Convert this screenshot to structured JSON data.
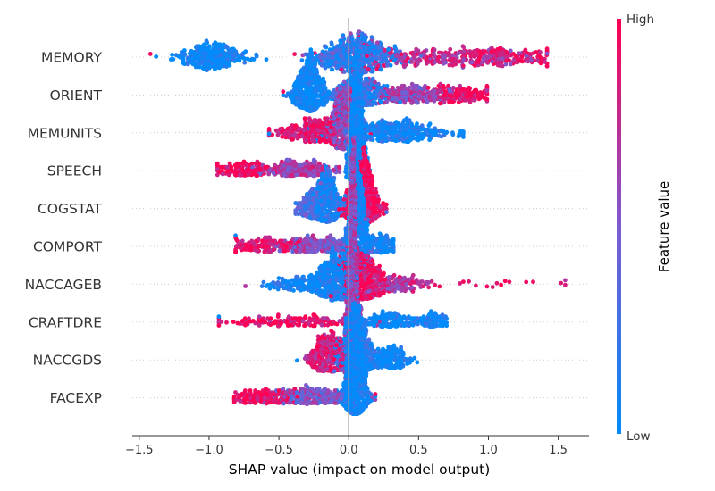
{
  "chart_data": {
    "type": "scatter",
    "subtype": "shap-beeswarm",
    "xlabel": "SHAP value (impact on model output)",
    "xlim": [
      -1.55,
      1.72
    ],
    "xticks": [
      -1.5,
      -1.0,
      -0.5,
      0.0,
      0.5,
      1.0,
      1.5
    ],
    "xtick_labels": [
      "−1.5",
      "−1.0",
      "−0.5",
      "0.0",
      "0.5",
      "1.0",
      "1.5"
    ],
    "zero_line": 0.0,
    "colorbar": {
      "label": "Feature value",
      "high_label": "High",
      "low_label": "Low",
      "low_color": "#008bfb",
      "high_color": "#ff0052"
    },
    "features": [
      {
        "name": "MEMORY",
        "min": -1.42,
        "max": 1.42,
        "outliers": [],
        "clusters": [
          [
            -0.98,
            0.12,
            0.55,
            0.0
          ],
          [
            0.05,
            0.14,
            1.0,
            0.15
          ],
          [
            0.6,
            0.38,
            0.55,
            0.75
          ],
          [
            1.1,
            0.18,
            0.22,
            0.95
          ]
        ]
      },
      {
        "name": "ORIENT",
        "min": -0.47,
        "max": 0.99,
        "outliers": [],
        "clusters": [
          [
            -0.28,
            0.06,
            0.8,
            0.0
          ],
          [
            0.08,
            0.1,
            0.5,
            0.15
          ],
          [
            0.45,
            0.2,
            0.45,
            0.6
          ],
          [
            0.8,
            0.1,
            0.18,
            0.95
          ]
        ]
      },
      {
        "name": "MEMUNITS",
        "min": -0.57,
        "max": 0.82,
        "outliers": [],
        "clusters": [
          [
            -0.02,
            0.05,
            0.7,
            0.55
          ],
          [
            -0.22,
            0.14,
            0.45,
            0.9
          ],
          [
            0.3,
            0.2,
            0.55,
            0.05
          ]
        ]
      },
      {
        "name": "SPEECH",
        "min": -0.94,
        "max": 0.15,
        "outliers": [],
        "clusters": [
          [
            0.06,
            0.03,
            0.85,
            0.0
          ],
          [
            -0.35,
            0.15,
            0.25,
            0.65
          ],
          [
            -0.75,
            0.1,
            0.15,
            0.95
          ]
        ]
      },
      {
        "name": "COGSTAT",
        "min": -0.38,
        "max": 0.27,
        "outliers": [],
        "clusters": [
          [
            0.1,
            0.06,
            1.0,
            0.95
          ],
          [
            -0.15,
            0.05,
            0.6,
            0.1
          ],
          [
            -0.26,
            0.06,
            0.3,
            0.3
          ]
        ]
      },
      {
        "name": "COMPORT",
        "min": -0.81,
        "max": 0.32,
        "outliers": [],
        "clusters": [
          [
            0.06,
            0.04,
            0.85,
            0.0
          ],
          [
            -0.2,
            0.15,
            0.3,
            0.55
          ],
          [
            -0.6,
            0.12,
            0.18,
            0.95
          ],
          [
            0.22,
            0.06,
            0.15,
            0.05
          ]
        ]
      },
      {
        "name": "NACCAGEB",
        "min": -0.74,
        "max": 1.55,
        "outliers": [
          0.82,
          0.86,
          0.91,
          0.99,
          1.03,
          1.06,
          1.09,
          1.12,
          1.15,
          1.27,
          1.32,
          1.52,
          1.55
        ],
        "clusters": [
          [
            -0.1,
            0.08,
            0.85,
            0.05
          ],
          [
            0.1,
            0.08,
            0.9,
            0.95
          ],
          [
            -0.35,
            0.13,
            0.25,
            0.05
          ],
          [
            0.3,
            0.15,
            0.35,
            0.7
          ]
        ]
      },
      {
        "name": "CRAFTDRE",
        "min": -0.93,
        "max": 0.7,
        "outliers": [],
        "clusters": [
          [
            0.03,
            0.02,
            0.9,
            0.6
          ],
          [
            -0.4,
            0.26,
            0.2,
            0.9
          ],
          [
            0.3,
            0.15,
            0.22,
            0.05
          ],
          [
            0.62,
            0.05,
            0.08,
            0.0
          ]
        ]
      },
      {
        "name": "NACCGDS",
        "min": -0.37,
        "max": 0.49,
        "outliers": [],
        "clusters": [
          [
            0.05,
            0.06,
            1.0,
            0.1
          ],
          [
            -0.15,
            0.07,
            0.55,
            0.85
          ],
          [
            0.3,
            0.08,
            0.3,
            0.0
          ]
        ]
      },
      {
        "name": "FACEXP",
        "min": -0.82,
        "max": 0.19,
        "outliers": [],
        "clusters": [
          [
            0.05,
            0.04,
            0.9,
            0.0
          ],
          [
            -0.25,
            0.15,
            0.25,
            0.5
          ],
          [
            -0.6,
            0.12,
            0.15,
            0.95
          ]
        ]
      }
    ]
  }
}
